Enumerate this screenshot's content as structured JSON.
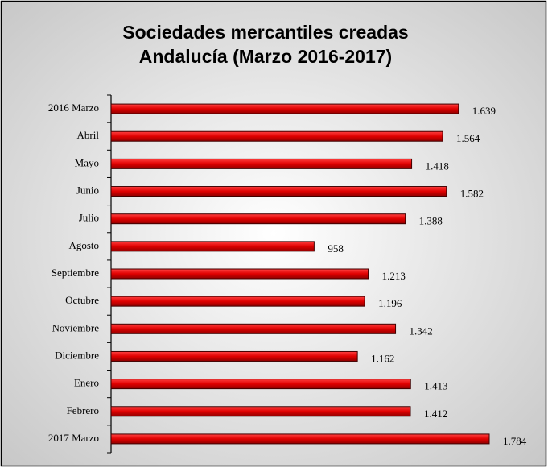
{
  "chart_data": {
    "type": "hbar",
    "title": [
      "Sociedades mercantiles creadas",
      "Andalucía (Marzo 2016-2017)"
    ],
    "categories": [
      "2016 Marzo",
      "Abril",
      "Mayo",
      "Junio",
      "Julio",
      "Agosto",
      "Septiembre",
      "Octubre",
      "Noviembre",
      "Diciembre",
      "Enero",
      "Febrero",
      "2017 Marzo"
    ],
    "values": [
      1639,
      1564,
      1418,
      1582,
      1388,
      958,
      1213,
      1196,
      1342,
      1162,
      1413,
      1412,
      1784
    ],
    "value_labels": [
      "1.639",
      "1.564",
      "1.418",
      "1.582",
      "1.388",
      "958",
      "1.213",
      "1.196",
      "1.342",
      "1.162",
      "1.413",
      "1.412",
      "1.784"
    ],
    "color": "#e00000",
    "annotation": "º"
  }
}
